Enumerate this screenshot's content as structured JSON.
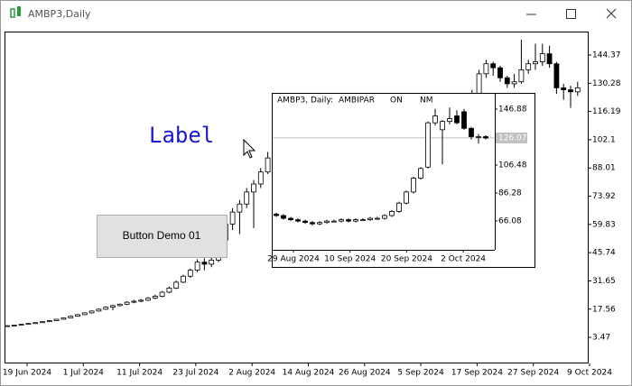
{
  "window": {
    "title": "AMBP3,Daily"
  },
  "widgets": {
    "label": "Label",
    "button": "Button Demo 01"
  },
  "chart_data": [
    {
      "type": "candlestick",
      "ylim": [
        -9.55,
        156.07
      ],
      "yticks": [
        144.37,
        130.28,
        116.19,
        102.1,
        88.01,
        73.92,
        59.83,
        45.74,
        31.65,
        17.56,
        3.47
      ],
      "xtick_labels": [
        "19 Jun 2024",
        "1 Jul 2024",
        "11 Jul 2024",
        "23 Jul 2024",
        "2 Aug 2024",
        "14 Aug 2024",
        "26 Aug 2024",
        "5 Sep 2024",
        "17 Sep 2024",
        "27 Sep 2024",
        "9 Oct 2024"
      ],
      "ohlc": [
        [
          9.2,
          9.6,
          9.0,
          9.3
        ],
        [
          9.3,
          9.8,
          9.2,
          9.6
        ],
        [
          9.6,
          10.2,
          9.5,
          10.0
        ],
        [
          10.0,
          10.6,
          9.9,
          10.4
        ],
        [
          10.4,
          11.0,
          10.2,
          10.8
        ],
        [
          10.8,
          11.5,
          10.7,
          11.3
        ],
        [
          11.3,
          12.0,
          11.1,
          11.8
        ],
        [
          11.8,
          12.7,
          11.6,
          12.5
        ],
        [
          12.5,
          13.4,
          12.3,
          13.2
        ],
        [
          13.2,
          14.3,
          13.0,
          14.0
        ],
        [
          14.0,
          15.1,
          13.8,
          14.8
        ],
        [
          14.8,
          16.0,
          14.6,
          15.7
        ],
        [
          15.7,
          16.9,
          15.4,
          16.6
        ],
        [
          16.6,
          17.9,
          16.4,
          17.5
        ],
        [
          17.5,
          19.0,
          17.2,
          18.5
        ],
        [
          18.5,
          19.8,
          17.0,
          19.3
        ],
        [
          19.3,
          20.4,
          18.9,
          20.0
        ],
        [
          20.0,
          21.5,
          19.6,
          21.0
        ],
        [
          21.0,
          22.2,
          20.5,
          21.5
        ],
        [
          21.5,
          22.6,
          21.0,
          22.0
        ],
        [
          22.0,
          23.6,
          21.6,
          23.0
        ],
        [
          23.0,
          24.8,
          22.5,
          24.0
        ],
        [
          24.0,
          26.6,
          23.5,
          26.0
        ],
        [
          26.0,
          28.8,
          25.5,
          28.0
        ],
        [
          28.0,
          31.8,
          27.6,
          31.0
        ],
        [
          31.0,
          34.8,
          30.5,
          34.0
        ],
        [
          34.0,
          37.8,
          33.2,
          37.0
        ],
        [
          37.0,
          42.5,
          36.0,
          41.0
        ],
        [
          41.0,
          43.0,
          37.0,
          40.0
        ],
        [
          40.0,
          43.5,
          38.5,
          42.0
        ],
        [
          42,
          53.5,
          41,
          52
        ],
        [
          52,
          61.5,
          50,
          60
        ],
        [
          60,
          68,
          57,
          66
        ],
        [
          66,
          72,
          55,
          70
        ],
        [
          70,
          78,
          68,
          76
        ],
        [
          76,
          82,
          58,
          80
        ],
        [
          80,
          88,
          78,
          86
        ],
        [
          86,
          96,
          85,
          93
        ],
        [
          93,
          94,
          84,
          85
        ],
        [
          85,
          86,
          79,
          80
        ],
        [
          80,
          81,
          74,
          75
        ],
        [
          75,
          76,
          71,
          72
        ],
        [
          72,
          73,
          69,
          70
        ],
        [
          70,
          71,
          67,
          68
        ],
        [
          68,
          69,
          65,
          66
        ],
        [
          66,
          67,
          64,
          65
        ],
        [
          65,
          67,
          64,
          66
        ],
        [
          66,
          68,
          65,
          67
        ],
        [
          67,
          69,
          66,
          68
        ],
        [
          68,
          69,
          66,
          67
        ],
        [
          67,
          68,
          65,
          66
        ],
        [
          66,
          67,
          64,
          65
        ],
        [
          65,
          67,
          64,
          66
        ],
        [
          66,
          68,
          65,
          67
        ],
        [
          67,
          68,
          66,
          67
        ],
        [
          67,
          69,
          66,
          68
        ],
        [
          68,
          69,
          67,
          68
        ],
        [
          68,
          70,
          67,
          69
        ],
        [
          69,
          71,
          68,
          70
        ],
        [
          70,
          73,
          69,
          72
        ],
        [
          72,
          76,
          71,
          75
        ],
        [
          75,
          81,
          74,
          80
        ],
        [
          80,
          89,
          79,
          88
        ],
        [
          88,
          96,
          87,
          95
        ],
        [
          95,
          104,
          94,
          103
        ],
        [
          103,
          109,
          90,
          108
        ],
        [
          108,
          127,
          106,
          125
        ],
        [
          125,
          137,
          123,
          135
        ],
        [
          135,
          142,
          133,
          140
        ],
        [
          140,
          141,
          134,
          138
        ],
        [
          138,
          139,
          131,
          133
        ],
        [
          133,
          134,
          128,
          130
        ],
        [
          130,
          135,
          128,
          131
        ],
        [
          131,
          152,
          130,
          137
        ],
        [
          137,
          142,
          135,
          140
        ],
        [
          140,
          150,
          137,
          141
        ],
        [
          141,
          150,
          139,
          145
        ],
        [
          145,
          149,
          138,
          140
        ],
        [
          140,
          141,
          125,
          128
        ],
        [
          128,
          130,
          122,
          127
        ],
        [
          127,
          129,
          118,
          126
        ],
        [
          126,
          131,
          124,
          128
        ]
      ]
    },
    {
      "type": "candlestick",
      "title": "AMBP3, Daily:",
      "subtitle": "AMBIPAR",
      "tags": [
        "ON",
        "NM"
      ],
      "current_price": 126.07,
      "ylim": [
        45.25,
        157.95
      ],
      "yticks": [
        146.88,
        106.48,
        86.28,
        66.08
      ],
      "xtick_labels": [
        "29 Aug 2024",
        "10 Sep 2024",
        "20 Sep 2024",
        "2 Oct 2024"
      ],
      "ohlc": [
        [
          71,
          72,
          69,
          70
        ],
        [
          70,
          71,
          67,
          68
        ],
        [
          68,
          69,
          66,
          67
        ],
        [
          67,
          68,
          65,
          66
        ],
        [
          66,
          67,
          64,
          65
        ],
        [
          65,
          66,
          63,
          64
        ],
        [
          64,
          66,
          63,
          65
        ],
        [
          65,
          67,
          64,
          66
        ],
        [
          66,
          67,
          65,
          66
        ],
        [
          66,
          68,
          65,
          67
        ],
        [
          67,
          68,
          65,
          66
        ],
        [
          66,
          68,
          65,
          67
        ],
        [
          67,
          68,
          66,
          67
        ],
        [
          67,
          69,
          66,
          68
        ],
        [
          68,
          69,
          67,
          68
        ],
        [
          68,
          71,
          67,
          70
        ],
        [
          70,
          74,
          69,
          73
        ],
        [
          73,
          80,
          72,
          79
        ],
        [
          79,
          88,
          78,
          87
        ],
        [
          87,
          98,
          86,
          97
        ],
        [
          97,
          105,
          96,
          104
        ],
        [
          105,
          138,
          104,
          137
        ],
        [
          137,
          147,
          135,
          142
        ],
        [
          132,
          139,
          107,
          138
        ],
        [
          138,
          148,
          136,
          140
        ],
        [
          142,
          146,
          136,
          137
        ],
        [
          145,
          147,
          132,
          133
        ],
        [
          133,
          134,
          125,
          127
        ],
        [
          127,
          129,
          122,
          127
        ],
        [
          127,
          128,
          125,
          126
        ]
      ]
    }
  ]
}
